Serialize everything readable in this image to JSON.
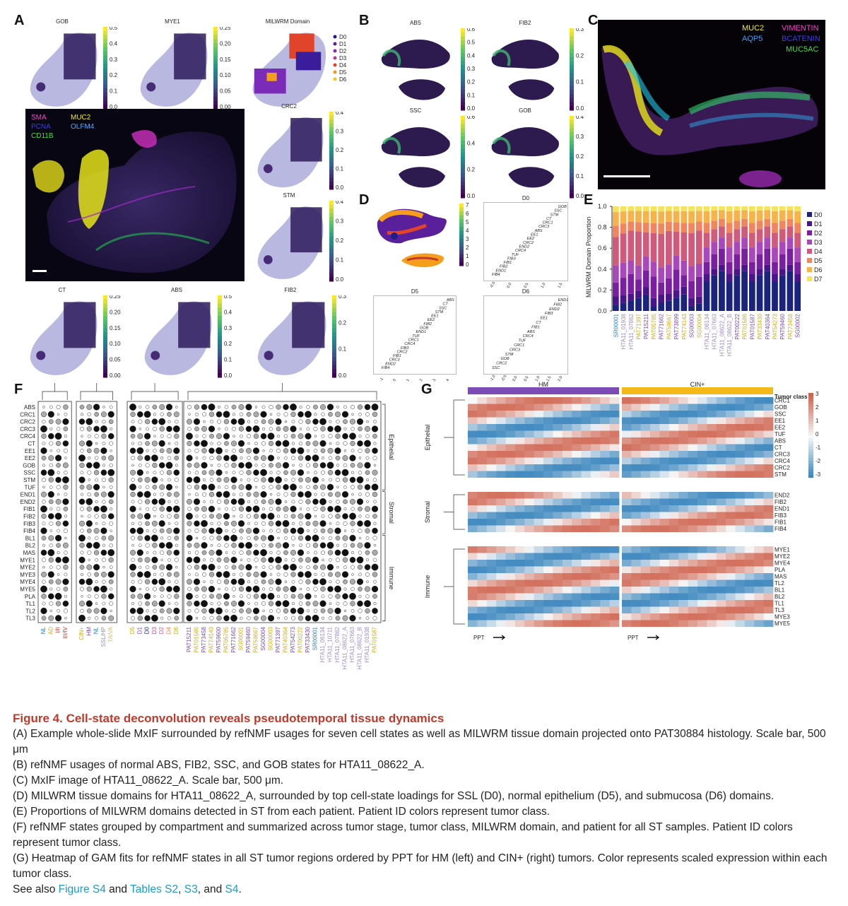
{
  "panels": {
    "A": {
      "label": "A",
      "thumbs": [
        {
          "title": "GOB",
          "ticks": [
            "0.5",
            "0.4",
            "0.3",
            "0.2",
            "0.1",
            "0.0"
          ]
        },
        {
          "title": "MYE1",
          "ticks": [
            "0.25",
            "0.20",
            "0.15",
            "0.10",
            "0.05",
            "0.00"
          ]
        },
        {
          "title": "MILWRM Domain",
          "legend": [
            "D0",
            "D1",
            "D2",
            "D3",
            "D4",
            "D5",
            "D6"
          ]
        },
        {
          "title": "CRC2",
          "ticks": [
            "0.4",
            "0.3",
            "0.2",
            "0.1",
            "0.0"
          ]
        },
        {
          "title": "STM",
          "ticks": [
            "0.4",
            "0.3",
            "0.2",
            "0.1",
            "0.0"
          ]
        },
        {
          "title": "CT",
          "ticks": [
            "0.25",
            "0.20",
            "0.15",
            "0.10",
            "0.05",
            "0.00"
          ]
        },
        {
          "title": "ABS",
          "ticks": [
            "0.5",
            "0.4",
            "0.3",
            "0.2",
            "0.1",
            "0.0"
          ]
        },
        {
          "title": "FIB2",
          "ticks": [
            "0.3",
            "0.2",
            "0.1",
            "0.0"
          ]
        }
      ],
      "mxif_labels": [
        "SMA",
        "MUC2",
        "PCNA",
        "OLFM4",
        "CD11B"
      ]
    },
    "B": {
      "label": "B",
      "thumbs": [
        {
          "title": "ABS",
          "ticks": [
            "0.6",
            "0.5",
            "0.4",
            "0.3",
            "0.2",
            "0.1",
            "0.0"
          ]
        },
        {
          "title": "FIB2",
          "ticks": [
            "0.3",
            "0.2",
            "0.1",
            "0.0"
          ]
        },
        {
          "title": "SSC",
          "ticks": [
            "0.6",
            "0.4",
            "0.2",
            "0.0"
          ]
        },
        {
          "title": "GOB",
          "ticks": [
            "0.4",
            "0.3",
            "0.2",
            "0.1",
            "0.0"
          ]
        }
      ]
    },
    "C": {
      "label": "C",
      "markers": [
        "MUC2",
        "VIMENTIN",
        "AQP5",
        "BCATENIN",
        "MUC5AC"
      ]
    },
    "D": {
      "label": "D",
      "colorbar": [
        "7",
        "6",
        "5",
        "4",
        "3",
        "2",
        "1",
        "0"
      ],
      "plots": [
        {
          "title": "D0",
          "words": [
            "GOB",
            "SSC",
            "STM",
            "CT",
            "CRC1",
            "CRC3",
            "ABS",
            "EE1",
            "EE2",
            "CRC2",
            "END2",
            "CRC4",
            "TUF",
            "FIB3",
            "FIB1",
            "FIB2",
            "END1",
            "FIB4"
          ],
          "xticks": [
            "-0.5",
            "0.0",
            "0.5",
            "1.0",
            "1.5"
          ]
        },
        {
          "title": "D5",
          "words": [
            "ABS",
            "CT",
            "SSC",
            "STM",
            "EE1",
            "EE2",
            "FIB2",
            "GOB",
            "END1",
            "TUF",
            "CRC1",
            "CRC4",
            "FIB3",
            "CRC2",
            "FIB1",
            "CRC3",
            "END2",
            "FIB4"
          ],
          "xticks": [
            "-1",
            "0",
            "1",
            "2",
            "3",
            "4"
          ]
        },
        {
          "title": "D6",
          "words": [
            "END1",
            "FIB2",
            "END2",
            "FIB3",
            "EE1",
            "CT",
            "FIB1",
            "ABS",
            "CRC4",
            "TUF",
            "CRC1",
            "CRC3",
            "STM",
            "GOB",
            "CRC2",
            "SSC"
          ],
          "xticks": [
            "-1.0",
            "-0.5",
            "0.0",
            "0.5",
            "1.0",
            "1.5",
            "2.0"
          ]
        }
      ]
    },
    "E": {
      "label": "E",
      "ylabel": "MILWRM Domain Proportion",
      "legend": [
        "D0",
        "D1",
        "D2",
        "D3",
        "D4",
        "D5",
        "D6",
        "D7"
      ],
      "patients": [
        "SR00001",
        "HTA11_01938",
        "HTA11_07862",
        "PAT71397",
        "PAT15211",
        "PAT05785",
        "PAT71662",
        "PAT59667",
        "PAT73899",
        "PAT74143",
        "SG00003",
        "SG00004",
        "HTA11_06134",
        "HTA11_07663",
        "HTA11_08622_A",
        "HTA11_08622_B",
        "PAT00222",
        "PAT01586",
        "PAT01587",
        "PAT33430",
        "PAT40364",
        "PAT54273",
        "PAT59460",
        "PAT73458",
        "SG00002"
      ]
    },
    "F": {
      "label": "F",
      "rows": [
        "ABS",
        "CRC1",
        "CRC2",
        "CRC3",
        "CRC4",
        "CT",
        "EE1",
        "EE2",
        "GOB",
        "SSC",
        "STM",
        "TUF",
        "END1",
        "END2",
        "FIB1",
        "FIB2",
        "FIB3",
        "FIB4",
        "BL1",
        "BL2",
        "MAS",
        "MYE1",
        "MYE2",
        "MYE3",
        "MYE4",
        "MYE5",
        "PLA",
        "TL1",
        "TL2",
        "TL3"
      ],
      "compartments": [
        "Epithelial",
        "Stromal",
        "Immune"
      ],
      "stages": [
        "NL",
        "AD",
        "I/II",
        "III/IV"
      ],
      "classes": [
        "CIN+",
        "HM",
        "NL",
        "SSL/HP",
        "TA/VA"
      ],
      "domains": [
        "D5",
        "D1",
        "D0",
        "D3",
        "D2",
        "D4",
        "D6"
      ],
      "patients": [
        "PAT15211",
        "PAT01586",
        "PAT73458",
        "PAT74143",
        "PAT59600",
        "PAT05785",
        "PAT71662",
        "SG00001",
        "PAT59460",
        "PAT59667",
        "SG00004",
        "SG00003",
        "PAT71397",
        "PAT40364",
        "PAT54273",
        "PAT00222",
        "PAT33430",
        "SR00001",
        "HTA11_06134",
        "HTA11_10711",
        "HTA11_07862",
        "HTA11_08622_A",
        "HTA11_07663",
        "HTA11_08622_B",
        "HTA11_01938",
        "PAT01587"
      ]
    },
    "G": {
      "label": "G",
      "groups": [
        "HM",
        "CIN+"
      ],
      "tumor_class": "Tumor class",
      "scale": [
        "3",
        "2",
        "1",
        "0",
        "-1",
        "-2",
        "-3"
      ],
      "sections": [
        {
          "name": "Epithelial",
          "rows": [
            "CRC1",
            "GOB",
            "SSC",
            "EE1",
            "EE2",
            "TUF",
            "ABS",
            "CT",
            "CRC3",
            "CRC4",
            "CRC2",
            "STM"
          ]
        },
        {
          "name": "Stromal",
          "rows": [
            "END2",
            "FIB2",
            "END1",
            "FIB3",
            "FIB1",
            "FIB4"
          ]
        },
        {
          "name": "Immune",
          "rows": [
            "MYE1",
            "MYE2",
            "MYE4",
            "PLA",
            "MAS",
            "TL2",
            "BL1",
            "BL2",
            "TL1",
            "TL3",
            "MYE3",
            "MYE5"
          ]
        }
      ],
      "ppt": "PPT"
    }
  },
  "caption": {
    "title": "Figure 4.  Cell-state deconvolution reveals pseudotemporal tissue dynamics",
    "lines": [
      "(A) Example whole-slide MxIF surrounded by refNMF usages for seven cell states as well as MILWRM tissue domain projected onto PAT30884 histology. Scale bar, 500 μm",
      "(B) refNMF usages of normal ABS, FIB2, SSC, and GOB states for HTA11_08622_A.",
      "(C) MxIF image of HTA11_08622_A. Scale bar, 500 μm.",
      "(D) MILWRM tissue domains for HTA11_08622_A, surrounded by top cell-state loadings for SSL (D0), normal epithelium (D5), and submucosa (D6) domains.",
      "(E) Proportions of MILWRM domains detected in ST from each patient. Patient ID colors represent tumor class.",
      "(F) refNMF states grouped by compartment and summarized across tumor stage, tumor class, MILWRM domain, and patient for all ST samples. Patient ID colors represent tumor class.",
      "(G) Heatmap of GAM fits for refNMF states in all ST tumor regions ordered by PPT for HM (left) and CIN+ (right) tumors. Color represents scaled expression within each tumor class."
    ],
    "see_also_prefix": "See also ",
    "see_also_fig": "Figure S4",
    "see_also_and": " and ",
    "see_also_tables": "Tables S2",
    "see_also_s3": "S3",
    "see_also_and2": ", and ",
    "see_also_s4": "S4",
    "comma": ", ",
    "period": "."
  }
}
